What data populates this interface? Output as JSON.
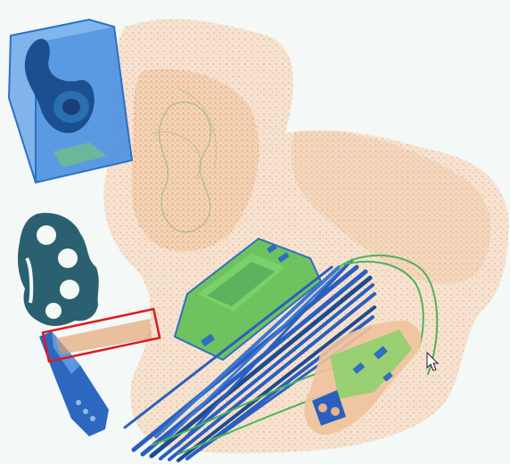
{
  "scan": {
    "background": "#f4f8f6",
    "colors": {
      "organic": "#e0a16e",
      "organic_light": "#efc8a4",
      "mixed": "#6cc04a",
      "mixed_light": "#9ed77c",
      "metal": "#2a5fbf",
      "metal_dark": "#1d4c8f",
      "teal": "#2a5a6a",
      "highlight": "#e0191f"
    },
    "objects": [
      {
        "name": "clear-box-with-object",
        "material": "metal"
      },
      {
        "name": "brass-knuckles",
        "material": "dense-metal"
      },
      {
        "name": "folding-knife",
        "material": "metal"
      },
      {
        "name": "circuit-board",
        "material": "mixed"
      },
      {
        "name": "cable-bundle",
        "material": "metal"
      },
      {
        "name": "small-electronics-board",
        "material": "mixed"
      },
      {
        "name": "bag-clutter",
        "material": "organic"
      }
    ],
    "annotation": {
      "type": "bounding-box",
      "color": "#e0191f"
    },
    "cursor": "mouse-pointer-icon"
  }
}
